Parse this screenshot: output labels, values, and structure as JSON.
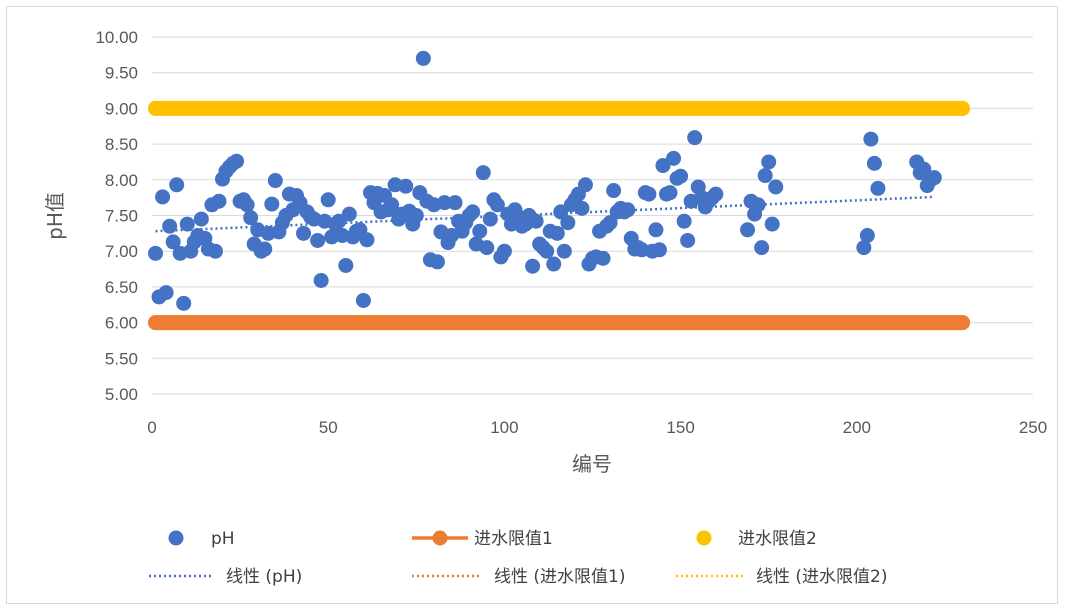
{
  "chart_data": {
    "type": "scatter",
    "title": "",
    "xlabel": "编号",
    "ylabel": "pH值",
    "xlim": [
      0,
      250
    ],
    "ylim": [
      5.0,
      10.0
    ],
    "x_ticks": [
      "0",
      "50",
      "100",
      "150",
      "200",
      "250"
    ],
    "y_ticks": [
      "5.00",
      "5.50",
      "6.00",
      "6.50",
      "7.00",
      "7.50",
      "8.00",
      "8.50",
      "9.00",
      "9.50",
      "10.00"
    ],
    "grid": "horizontal",
    "legend_position": "bottom",
    "series": [
      {
        "name": "pH",
        "type": "scatter",
        "color": "#4472C4",
        "points": [
          [
            1,
            6.97
          ],
          [
            2,
            6.36
          ],
          [
            3,
            7.76
          ],
          [
            4,
            6.42
          ],
          [
            5,
            7.35
          ],
          [
            6,
            7.13
          ],
          [
            7,
            7.93
          ],
          [
            8,
            6.97
          ],
          [
            9,
            6.27
          ],
          [
            10,
            7.38
          ],
          [
            11,
            7.0
          ],
          [
            12,
            7.13
          ],
          [
            13,
            7.22
          ],
          [
            14,
            7.45
          ],
          [
            15,
            7.18
          ],
          [
            16,
            7.03
          ],
          [
            17,
            7.65
          ],
          [
            18,
            7.0
          ],
          [
            19,
            7.7
          ],
          [
            20,
            8.01
          ],
          [
            21,
            8.12
          ],
          [
            22,
            8.18
          ],
          [
            23,
            8.23
          ],
          [
            24,
            8.26
          ],
          [
            25,
            7.7
          ],
          [
            26,
            7.72
          ],
          [
            27,
            7.65
          ],
          [
            28,
            7.47
          ],
          [
            29,
            7.1
          ],
          [
            30,
            7.3
          ],
          [
            31,
            7.0
          ],
          [
            32,
            7.03
          ],
          [
            33,
            7.25
          ],
          [
            34,
            7.66
          ],
          [
            35,
            7.99
          ],
          [
            36,
            7.27
          ],
          [
            37,
            7.4
          ],
          [
            38,
            7.5
          ],
          [
            39,
            7.8
          ],
          [
            40,
            7.58
          ],
          [
            41,
            7.78
          ],
          [
            42,
            7.68
          ],
          [
            43,
            7.25
          ],
          [
            44,
            7.55
          ],
          [
            45,
            7.48
          ],
          [
            46,
            7.45
          ],
          [
            47,
            7.15
          ],
          [
            48,
            6.59
          ],
          [
            49,
            7.42
          ],
          [
            50,
            7.72
          ],
          [
            51,
            7.2
          ],
          [
            52,
            7.38
          ],
          [
            53,
            7.42
          ],
          [
            54,
            7.22
          ],
          [
            55,
            6.8
          ],
          [
            56,
            7.52
          ],
          [
            57,
            7.2
          ],
          [
            58,
            7.28
          ],
          [
            59,
            7.3
          ],
          [
            60,
            6.31
          ],
          [
            61,
            7.16
          ],
          [
            62,
            7.82
          ],
          [
            63,
            7.68
          ],
          [
            64,
            7.81
          ],
          [
            65,
            7.55
          ],
          [
            66,
            7.78
          ],
          [
            67,
            7.58
          ],
          [
            68,
            7.65
          ],
          [
            69,
            7.93
          ],
          [
            70,
            7.45
          ],
          [
            71,
            7.52
          ],
          [
            72,
            7.91
          ],
          [
            73,
            7.56
          ],
          [
            74,
            7.38
          ],
          [
            75,
            7.5
          ],
          [
            76,
            7.82
          ],
          [
            77,
            9.7
          ],
          [
            78,
            7.7
          ],
          [
            79,
            6.88
          ],
          [
            80,
            7.65
          ],
          [
            81,
            6.85
          ],
          [
            82,
            7.27
          ],
          [
            83,
            7.68
          ],
          [
            84,
            7.12
          ],
          [
            85,
            7.22
          ],
          [
            86,
            7.68
          ],
          [
            87,
            7.42
          ],
          [
            88,
            7.28
          ],
          [
            89,
            7.4
          ],
          [
            90,
            7.5
          ],
          [
            91,
            7.55
          ],
          [
            92,
            7.1
          ],
          [
            93,
            7.28
          ],
          [
            94,
            8.1
          ],
          [
            95,
            7.05
          ],
          [
            96,
            7.45
          ],
          [
            97,
            7.72
          ],
          [
            98,
            7.65
          ],
          [
            99,
            6.92
          ],
          [
            100,
            7.0
          ],
          [
            101,
            7.52
          ],
          [
            102,
            7.38
          ],
          [
            103,
            7.58
          ],
          [
            104,
            7.48
          ],
          [
            105,
            7.35
          ],
          [
            106,
            7.38
          ],
          [
            107,
            7.5
          ],
          [
            108,
            6.79
          ],
          [
            109,
            7.42
          ],
          [
            110,
            7.1
          ],
          [
            111,
            7.05
          ],
          [
            112,
            7.0
          ],
          [
            113,
            7.28
          ],
          [
            114,
            6.82
          ],
          [
            115,
            7.25
          ],
          [
            116,
            7.55
          ],
          [
            117,
            7.0
          ],
          [
            118,
            7.4
          ],
          [
            119,
            7.65
          ],
          [
            120,
            7.72
          ],
          [
            121,
            7.8
          ],
          [
            122,
            7.6
          ],
          [
            123,
            7.93
          ],
          [
            124,
            6.82
          ],
          [
            125,
            6.9
          ],
          [
            126,
            6.92
          ],
          [
            127,
            7.28
          ],
          [
            128,
            6.9
          ],
          [
            129,
            7.35
          ],
          [
            130,
            7.4
          ],
          [
            131,
            7.85
          ],
          [
            132,
            7.55
          ],
          [
            133,
            7.6
          ],
          [
            134,
            7.55
          ],
          [
            135,
            7.58
          ],
          [
            136,
            7.18
          ],
          [
            137,
            7.03
          ],
          [
            138,
            7.05
          ],
          [
            139,
            7.02
          ],
          [
            140,
            7.82
          ],
          [
            141,
            7.8
          ],
          [
            142,
            7.0
          ],
          [
            143,
            7.3
          ],
          [
            144,
            7.02
          ],
          [
            145,
            8.2
          ],
          [
            146,
            7.8
          ],
          [
            147,
            7.82
          ],
          [
            148,
            8.3
          ],
          [
            149,
            8.02
          ],
          [
            150,
            8.05
          ],
          [
            151,
            7.42
          ],
          [
            152,
            7.15
          ],
          [
            153,
            7.7
          ],
          [
            154,
            8.59
          ],
          [
            155,
            7.9
          ],
          [
            156,
            7.75
          ],
          [
            157,
            7.62
          ],
          [
            158,
            7.7
          ],
          [
            159,
            7.75
          ],
          [
            160,
            7.8
          ],
          [
            169,
            7.3
          ],
          [
            170,
            7.7
          ],
          [
            171,
            7.52
          ],
          [
            172,
            7.65
          ],
          [
            173,
            7.05
          ],
          [
            174,
            8.06
          ],
          [
            175,
            8.25
          ],
          [
            176,
            7.38
          ],
          [
            177,
            7.9
          ],
          [
            202,
            7.05
          ],
          [
            203,
            7.22
          ],
          [
            204,
            8.57
          ],
          [
            205,
            8.23
          ],
          [
            206,
            7.88
          ],
          [
            217,
            8.25
          ],
          [
            218,
            8.1
          ],
          [
            219,
            8.15
          ],
          [
            220,
            7.92
          ],
          [
            221,
            8.0
          ],
          [
            222,
            8.03
          ]
        ]
      },
      {
        "name": "进水限值1",
        "type": "line",
        "color": "#ED7D31",
        "x": [
          1,
          230
        ],
        "y": [
          6.0,
          6.0
        ]
      },
      {
        "name": "进水限值2",
        "type": "line",
        "color": "#FFC000",
        "x": [
          1,
          230
        ],
        "y": [
          9.0,
          9.0
        ]
      },
      {
        "name": "线性 (pH)",
        "type": "trendline",
        "color": "#4472C4",
        "x": [
          1,
          222
        ],
        "y": [
          7.28,
          7.76
        ]
      },
      {
        "name": "线性 (进水限值1)",
        "type": "trendline",
        "color": "#ED7D31",
        "x": [
          1,
          230
        ],
        "y": [
          6.0,
          6.0
        ]
      },
      {
        "name": "线性 (进水限值2)",
        "type": "trendline",
        "color": "#FFC000",
        "x": [
          1,
          230
        ],
        "y": [
          9.0,
          9.0
        ]
      }
    ]
  }
}
